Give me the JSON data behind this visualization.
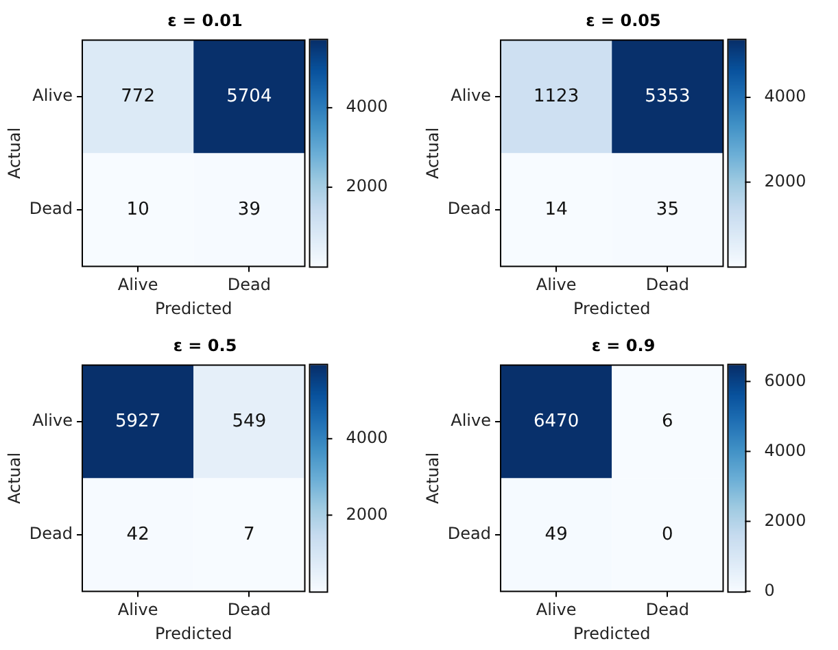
{
  "chart_data": [
    {
      "type": "heatmap",
      "title": "ε = 0.01",
      "xlabel": "Predicted",
      "ylabel": "Actual",
      "categories": [
        "Alive",
        "Dead"
      ],
      "y_categories": [
        "Alive",
        "Dead"
      ],
      "cells": [
        [
          772,
          5704
        ],
        [
          10,
          39
        ]
      ],
      "clim": [
        10,
        5704
      ],
      "cticks": [
        2000,
        4000
      ],
      "data_labels": true
    },
    {
      "type": "heatmap",
      "title": "ε = 0.05",
      "xlabel": "Predicted",
      "ylabel": "Actual",
      "categories": [
        "Alive",
        "Dead"
      ],
      "y_categories": [
        "Alive",
        "Dead"
      ],
      "cells": [
        [
          1123,
          5353
        ],
        [
          14,
          35
        ]
      ],
      "clim": [
        14,
        5353
      ],
      "cticks": [
        2000,
        4000
      ],
      "data_labels": true
    },
    {
      "type": "heatmap",
      "title": "ε = 0.5",
      "xlabel": "Predicted",
      "ylabel": "Actual",
      "categories": [
        "Alive",
        "Dead"
      ],
      "y_categories": [
        "Alive",
        "Dead"
      ],
      "cells": [
        [
          5927,
          549
        ],
        [
          42,
          7
        ]
      ],
      "clim": [
        7,
        5927
      ],
      "cticks": [
        2000,
        4000
      ],
      "data_labels": true
    },
    {
      "type": "heatmap",
      "title": "ε = 0.9",
      "xlabel": "Predicted",
      "ylabel": "Actual",
      "categories": [
        "Alive",
        "Dead"
      ],
      "y_categories": [
        "Alive",
        "Dead"
      ],
      "cells": [
        [
          6470,
          6
        ],
        [
          49,
          0
        ]
      ],
      "clim": [
        0,
        6470
      ],
      "cticks": [
        0,
        2000,
        4000,
        6000
      ],
      "data_labels": true
    }
  ]
}
